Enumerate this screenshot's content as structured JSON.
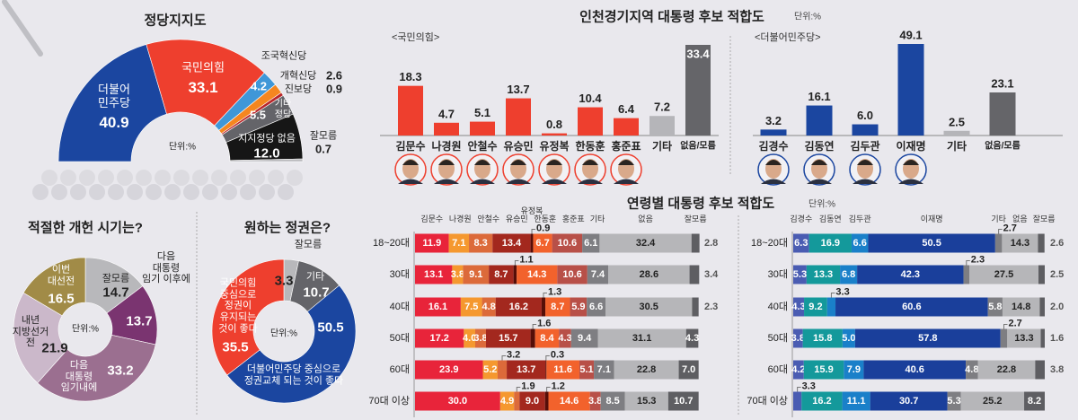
{
  "headings": {
    "regional_title": "인천경기지역 대통령 후보 적합도",
    "age_title": "연령별 대통령 후보 적합도",
    "unit": "단위:%"
  },
  "chart_data": [
    {
      "type": "pie",
      "title": "정당지지도",
      "unit": "단위:%",
      "shape": "semicircle donut",
      "segments": [
        {
          "label": "더불어\n민주당",
          "value": 40.9,
          "color": "#1b46a0"
        },
        {
          "label": "국민의힘",
          "value": 33.1,
          "color": "#ee3f2e"
        },
        {
          "label": "조국혁신당",
          "value": 4.2,
          "color": "#3f97d8"
        },
        {
          "label": "개혁신당",
          "value": 2.6,
          "color": "#f5861f"
        },
        {
          "label": "진보당",
          "value": 0.9,
          "color": "#b8262a"
        },
        {
          "label": "기타\n정당",
          "value": 5.5,
          "color": "#646469"
        },
        {
          "label": "지지정당 없음",
          "value": 12.0,
          "color": "#161616"
        },
        {
          "label": "잘모름",
          "value": 0.7,
          "color": "#b9b9bc"
        }
      ]
    },
    {
      "type": "bar",
      "group": "<국민의힘>",
      "categories": [
        "김문수",
        "나경원",
        "안철수",
        "유승민",
        "유정복",
        "한동훈",
        "홍준표",
        "기타",
        "없음/모름"
      ],
      "values": [
        18.3,
        4.7,
        5.1,
        13.7,
        0.8,
        10.4,
        6.4,
        7.2,
        33.4
      ],
      "colors": [
        "#ee3f2e",
        "#ee3f2e",
        "#ee3f2e",
        "#ee3f2e",
        "#ee3f2e",
        "#ee3f2e",
        "#ee3f2e",
        "#b5b5b9",
        "#656569"
      ],
      "photo_border": "#ee3f2e"
    },
    {
      "type": "bar",
      "group": "<더불어민주당>",
      "categories": [
        "김경수",
        "김동연",
        "김두관",
        "이재명",
        "기타",
        "없음/모름"
      ],
      "values": [
        3.2,
        16.1,
        6.0,
        49.1,
        2.5,
        23.1
      ],
      "colors": [
        "#1b46a0",
        "#1b46a0",
        "#1b46a0",
        "#1b46a0",
        "#b5b5b9",
        "#656569"
      ],
      "photo_border": "#1b46a0"
    },
    {
      "type": "bar",
      "stacked": true,
      "orientation": "horizontal",
      "categories": [
        "18~20대",
        "30대",
        "40대",
        "50대",
        "60대",
        "70대 이상"
      ],
      "series": [
        {
          "name": "김문수",
          "color": "#e8243a",
          "values": [
            11.9,
            13.1,
            16.1,
            17.2,
            23.9,
            30.0
          ]
        },
        {
          "name": "나경원",
          "color": "#f5982f",
          "values": [
            7.1,
            3.8,
            7.5,
            4.0,
            5.2,
            4.9
          ]
        },
        {
          "name": "안철수",
          "color": "#dc6a3a",
          "values": [
            8.3,
            9.1,
            4.8,
            3.8,
            3.2,
            1.9
          ]
        },
        {
          "name": "유승민",
          "color": "#a3281e",
          "values": [
            13.4,
            8.7,
            16.2,
            15.7,
            13.7,
            9.0
          ]
        },
        {
          "name": "유정복",
          "color": "#560e08",
          "values": [
            0.9,
            1.1,
            1.3,
            1.6,
            0.3,
            1.2
          ]
        },
        {
          "name": "한동훈",
          "color": "#f2622c",
          "values": [
            6.7,
            14.3,
            8.7,
            8.4,
            11.6,
            14.6
          ]
        },
        {
          "name": "홍준표",
          "color": "#b85048",
          "values": [
            10.6,
            10.6,
            5.9,
            4.3,
            5.1,
            3.8
          ]
        },
        {
          "name": "기타",
          "color": "#7e7e82",
          "values": [
            6.1,
            7.4,
            6.6,
            9.4,
            7.1,
            8.5
          ]
        },
        {
          "name": "없음",
          "color": "#b6b6b9",
          "values": [
            32.4,
            28.6,
            30.5,
            31.1,
            22.8,
            15.3
          ]
        },
        {
          "name": "잘모름",
          "color": "#5e5e62",
          "values": [
            2.8,
            3.4,
            2.3,
            4.3,
            7.0,
            10.7
          ]
        }
      ]
    },
    {
      "type": "bar",
      "stacked": true,
      "orientation": "horizontal",
      "categories": [
        "18~20대",
        "30대",
        "40대",
        "50대",
        "60대",
        "70대 이상"
      ],
      "series": [
        {
          "name": "김경수",
          "color": "#4a5cb2",
          "values": [
            6.3,
            5.3,
            4.3,
            3.8,
            4.2,
            3.3
          ]
        },
        {
          "name": "김동연",
          "color": "#14999b",
          "values": [
            16.9,
            13.3,
            9.2,
            15.8,
            15.9,
            16.2
          ]
        },
        {
          "name": "김두관",
          "color": "#1a80c9",
          "values": [
            6.6,
            6.8,
            3.3,
            5.0,
            7.9,
            11.1
          ]
        },
        {
          "name": "이재명",
          "color": "#1a3f9b",
          "values": [
            50.5,
            42.3,
            60.6,
            57.8,
            40.6,
            30.7
          ]
        },
        {
          "name": "기타",
          "color": "#7e7e82",
          "values": [
            2.7,
            2.3,
            5.8,
            2.7,
            4.8,
            5.3
          ]
        },
        {
          "name": "없음",
          "color": "#b6b6b9",
          "values": [
            14.3,
            27.5,
            14.8,
            13.3,
            22.8,
            25.2
          ]
        },
        {
          "name": "잘모름",
          "color": "#5e5e62",
          "values": [
            2.6,
            2.5,
            2.0,
            1.6,
            3.8,
            8.2
          ]
        }
      ]
    },
    {
      "type": "pie",
      "title": "적절한 개헌 시기는?",
      "unit": "단위:%",
      "shape": "donut",
      "segments": [
        {
          "label": "잘모름",
          "value": 14.7,
          "color": "#b8b8bb"
        },
        {
          "label": "다음\n대통령\n임기 이후에",
          "value": 13.7,
          "color": "#7a3470"
        },
        {
          "label": "다음\n대통령\n임기내에",
          "value": 33.2,
          "color": "#9b6f90"
        },
        {
          "label": "내년\n지방선거\n전",
          "value": 21.9,
          "color": "#cbb8ca"
        },
        {
          "label": "이번\n대선전",
          "value": 16.5,
          "color": "#a18b47"
        }
      ]
    },
    {
      "type": "pie",
      "title": "원하는 정권은?",
      "unit": "단위:%",
      "shape": "donut",
      "segments": [
        {
          "label": "잘모름",
          "value": 3.3,
          "color": "#b8b8bb"
        },
        {
          "label": "기타",
          "value": 10.7,
          "color": "#646469"
        },
        {
          "label": "더불어민주당 중심으로\n정권교체 되는 것이 좋다",
          "value": 50.5,
          "color": "#1b46a0"
        },
        {
          "label": "국민의힘\n중심으로\n정권이\n유지되는\n것이 좋다",
          "value": 35.5,
          "color": "#ee3f2e"
        }
      ]
    }
  ]
}
